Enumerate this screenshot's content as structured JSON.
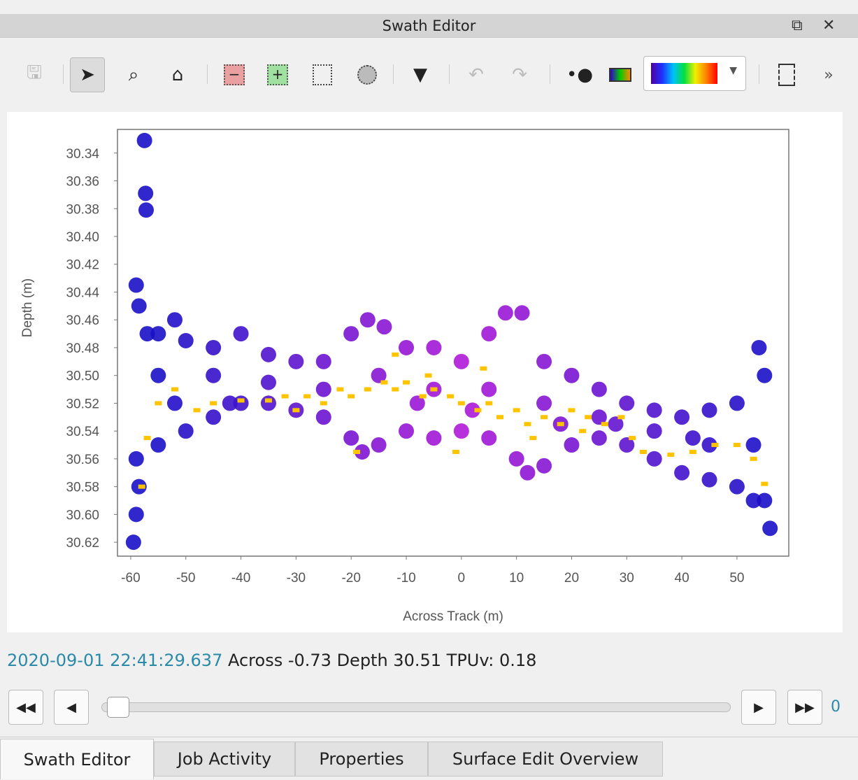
{
  "window": {
    "title": "Swath Editor",
    "restore_icon": "restore-window-icon",
    "close_icon": "close-icon"
  },
  "toolbar": {
    "tools": [
      {
        "name": "save",
        "icon": "save-icon",
        "enabled": false
      },
      {
        "name": "select",
        "icon": "pointer-arrow-icon",
        "active": true
      },
      {
        "name": "zoom",
        "icon": "magnifier-icon"
      },
      {
        "name": "home",
        "icon": "home-icon"
      },
      {
        "name": "reject",
        "icon": "reject-box-icon"
      },
      {
        "name": "accept",
        "icon": "accept-box-icon"
      },
      {
        "name": "rectangle-select",
        "icon": "rectangle-select-icon"
      },
      {
        "name": "lasso-select",
        "icon": "lasso-select-icon"
      },
      {
        "name": "filter",
        "icon": "filter-funnel-icon"
      },
      {
        "name": "undo",
        "icon": "undo-icon",
        "enabled": false
      },
      {
        "name": "redo",
        "icon": "redo-icon",
        "enabled": false
      },
      {
        "name": "point-style",
        "icon": "point-size-icon"
      },
      {
        "name": "color-by",
        "icon": "color-by-icon"
      },
      {
        "name": "layout",
        "icon": "layout-icon"
      },
      {
        "name": "more",
        "icon": "overflow-chevron-icon"
      }
    ],
    "colormap": "rainbow"
  },
  "chart_data": {
    "type": "scatter",
    "xlabel": "Across Track (m)",
    "ylabel": "Depth (m)",
    "xlim": [
      -62.4,
      59.4
    ],
    "ylim": [
      30.323,
      30.63
    ],
    "y_inverted": true,
    "xticks": [
      "-60",
      "-50",
      "-40",
      "-30",
      "-20",
      "-10",
      "0",
      "10",
      "20",
      "30",
      "40",
      "50"
    ],
    "xtick_values": [
      -60,
      -50,
      -40,
      -30,
      -20,
      -10,
      0,
      10,
      20,
      30,
      40,
      50
    ],
    "yticks": [
      "30.34",
      "30.36",
      "30.38",
      "30.40",
      "30.42",
      "30.44",
      "30.46",
      "30.48",
      "30.50",
      "30.52",
      "30.54",
      "30.56",
      "30.58",
      "30.60",
      "30.62"
    ],
    "ytick_values": [
      30.34,
      30.36,
      30.38,
      30.4,
      30.42,
      30.44,
      30.46,
      30.48,
      30.5,
      30.52,
      30.54,
      30.56,
      30.58,
      30.6,
      30.62
    ],
    "grid": false,
    "colors": {
      "outer": "#1a10c8",
      "inner": "#b018d8",
      "selected": "#ffc400"
    },
    "series": [
      {
        "role": "soundings",
        "points": [
          [
            -57.5,
            30.331
          ],
          [
            -57.3,
            30.369
          ],
          [
            -57.2,
            30.381
          ],
          [
            -59,
            30.435
          ],
          [
            -58.5,
            30.45
          ],
          [
            -59.5,
            30.62
          ],
          [
            -59,
            30.6
          ],
          [
            -58.5,
            30.58
          ],
          [
            -59,
            30.56
          ],
          [
            -57,
            30.47
          ],
          [
            -55,
            30.47
          ],
          [
            -52,
            30.46
          ],
          [
            -50,
            30.475
          ],
          [
            -45,
            30.48
          ],
          [
            -40,
            30.47
          ],
          [
            -35,
            30.485
          ],
          [
            -30,
            30.49
          ],
          [
            -25,
            30.49
          ],
          [
            -20,
            30.47
          ],
          [
            -17,
            30.46
          ],
          [
            -14,
            30.465
          ],
          [
            -10,
            30.48
          ],
          [
            -5,
            30.48
          ],
          [
            0,
            30.49
          ],
          [
            5,
            30.47
          ],
          [
            8,
            30.455
          ],
          [
            11,
            30.455
          ],
          [
            15,
            30.49
          ],
          [
            20,
            30.5
          ],
          [
            25,
            30.51
          ],
          [
            30,
            30.52
          ],
          [
            35,
            30.525
          ],
          [
            40,
            30.53
          ],
          [
            45,
            30.525
          ],
          [
            50,
            30.52
          ],
          [
            54,
            30.48
          ],
          [
            55,
            30.5
          ],
          [
            56,
            30.61
          ],
          [
            55,
            30.59
          ],
          [
            -55,
            30.55
          ],
          [
            -50,
            30.54
          ],
          [
            -45,
            30.53
          ],
          [
            -40,
            30.52
          ],
          [
            -35,
            30.52
          ],
          [
            -30,
            30.525
          ],
          [
            -25,
            30.53
          ],
          [
            -20,
            30.545
          ],
          [
            -18,
            30.555
          ],
          [
            -15,
            30.55
          ],
          [
            -10,
            30.54
          ],
          [
            -5,
            30.545
          ],
          [
            0,
            30.54
          ],
          [
            5,
            30.545
          ],
          [
            10,
            30.56
          ],
          [
            12,
            30.57
          ],
          [
            15,
            30.565
          ],
          [
            20,
            30.55
          ],
          [
            25,
            30.545
          ],
          [
            30,
            30.55
          ],
          [
            35,
            30.56
          ],
          [
            40,
            30.57
          ],
          [
            45,
            30.575
          ],
          [
            50,
            30.58
          ],
          [
            53,
            30.59
          ],
          [
            -55,
            30.5
          ],
          [
            -45,
            30.5
          ],
          [
            -35,
            30.505
          ],
          [
            -25,
            30.51
          ],
          [
            -15,
            30.5
          ],
          [
            -5,
            30.51
          ],
          [
            5,
            30.51
          ],
          [
            15,
            30.52
          ],
          [
            25,
            30.53
          ],
          [
            35,
            30.54
          ],
          [
            45,
            30.55
          ],
          [
            53,
            30.55
          ],
          [
            -52,
            30.52
          ],
          [
            -42,
            30.52
          ],
          [
            -8,
            30.52
          ],
          [
            2,
            30.525
          ],
          [
            18,
            30.535
          ],
          [
            28,
            30.535
          ],
          [
            42,
            30.545
          ]
        ]
      },
      {
        "role": "selected",
        "points": [
          [
            -58,
            30.58
          ],
          [
            -57,
            30.545
          ],
          [
            -55,
            30.52
          ],
          [
            -52,
            30.51
          ],
          [
            -48,
            30.525
          ],
          [
            -45,
            30.52
          ],
          [
            -40,
            30.518
          ],
          [
            -35,
            30.518
          ],
          [
            -32,
            30.515
          ],
          [
            -30,
            30.525
          ],
          [
            -28,
            30.515
          ],
          [
            -25,
            30.52
          ],
          [
            -22,
            30.51
          ],
          [
            -20,
            30.515
          ],
          [
            -17,
            30.51
          ],
          [
            -14,
            30.505
          ],
          [
            -12,
            30.51
          ],
          [
            -10,
            30.505
          ],
          [
            -7,
            30.515
          ],
          [
            -5,
            30.51
          ],
          [
            -2,
            30.515
          ],
          [
            0,
            30.52
          ],
          [
            3,
            30.525
          ],
          [
            5,
            30.52
          ],
          [
            7,
            30.53
          ],
          [
            10,
            30.525
          ],
          [
            12,
            30.535
          ],
          [
            15,
            30.53
          ],
          [
            18,
            30.535
          ],
          [
            20,
            30.525
          ],
          [
            23,
            30.53
          ],
          [
            26,
            30.535
          ],
          [
            29,
            30.53
          ],
          [
            31,
            30.545
          ],
          [
            33,
            30.555
          ],
          [
            38,
            30.557
          ],
          [
            42,
            30.555
          ],
          [
            46,
            30.55
          ],
          [
            50,
            30.55
          ],
          [
            53,
            30.56
          ],
          [
            55,
            30.578
          ],
          [
            -1,
            30.555
          ],
          [
            -19,
            30.555
          ],
          [
            -12,
            30.485
          ],
          [
            -6,
            30.5
          ],
          [
            4,
            30.495
          ],
          [
            13,
            30.545
          ],
          [
            22,
            30.54
          ]
        ]
      }
    ]
  },
  "status": {
    "timestamp": "2020-09-01 22:41:29.637",
    "across": "Across -0.73",
    "depth": "Depth 30.51",
    "tpuv": "TPUv: 0.18"
  },
  "player": {
    "position": 0,
    "count": "0"
  },
  "tabs": [
    {
      "label": "Swath Editor",
      "selected": true
    },
    {
      "label": "Job Activity"
    },
    {
      "label": "Properties"
    },
    {
      "label": "Surface Edit Overview"
    }
  ]
}
